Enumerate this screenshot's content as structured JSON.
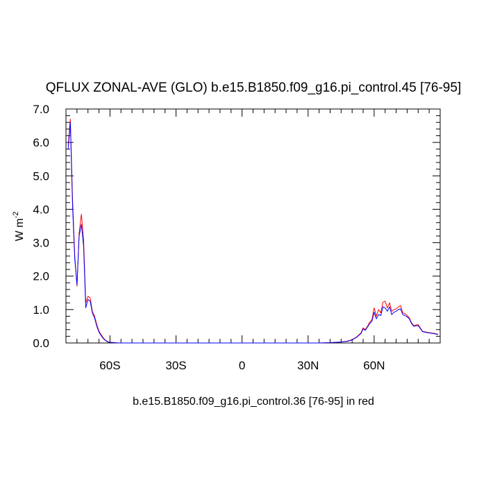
{
  "chart_data": {
    "type": "line",
    "title": "QFLUX ZONAL-AVE (GLO) b.e15.B1850.f09_g16.pi_control.45 [76-95]",
    "xlabel": "b.e15.B1850.f09_g16.pi_control.36 [76-95] in red",
    "ylabel": "W m",
    "ylabel_exponent": "-2",
    "xlim": [
      -80,
      90
    ],
    "ylim": [
      0,
      7
    ],
    "xticks": [
      {
        "value": -60,
        "label": "60S"
      },
      {
        "value": -30,
        "label": "30S"
      },
      {
        "value": 0,
        "label": "0"
      },
      {
        "value": 30,
        "label": "30N"
      },
      {
        "value": 60,
        "label": "60N"
      }
    ],
    "yticks": [
      {
        "value": 0,
        "label": "0.0"
      },
      {
        "value": 1,
        "label": "1.0"
      },
      {
        "value": 2,
        "label": "2.0"
      },
      {
        "value": 3,
        "label": "3.0"
      },
      {
        "value": 4,
        "label": "4.0"
      },
      {
        "value": 5,
        "label": "5.0"
      },
      {
        "value": 6,
        "label": "6.0"
      },
      {
        "value": 7,
        "label": "7.0"
      }
    ],
    "grid": false,
    "series": [
      {
        "color": "#ff0000",
        "x": [
          -79,
          -78,
          -77,
          -76,
          -75,
          -74,
          -73,
          -72,
          -71,
          -70,
          -69,
          -68,
          -67,
          -66,
          -65,
          -64,
          -63,
          -62,
          -61,
          -60,
          -58,
          -56,
          -54,
          -50,
          -40,
          -20,
          0,
          20,
          35,
          40,
          45,
          48,
          50,
          52,
          54,
          55,
          56,
          57,
          58,
          59,
          60,
          61,
          62,
          63,
          64,
          65,
          66,
          67,
          68,
          69,
          70,
          71,
          72,
          73,
          74,
          75,
          76,
          77,
          78,
          80,
          82,
          84,
          86,
          88,
          89
        ],
        "y": [
          5.9,
          6.7,
          4.3,
          2.6,
          1.7,
          3.3,
          3.85,
          3.1,
          1.2,
          1.4,
          1.35,
          0.95,
          0.8,
          0.55,
          0.35,
          0.25,
          0.15,
          0.08,
          0.04,
          0.02,
          0.01,
          0.0,
          0.0,
          0.0,
          0.0,
          0.0,
          0.0,
          0.0,
          0.0,
          0.01,
          0.03,
          0.06,
          0.1,
          0.18,
          0.3,
          0.45,
          0.4,
          0.5,
          0.62,
          0.7,
          1.05,
          0.8,
          1.0,
          0.9,
          1.22,
          1.25,
          1.05,
          1.2,
          0.95,
          1.0,
          1.02,
          1.08,
          1.12,
          0.9,
          0.88,
          0.82,
          0.75,
          0.6,
          0.52,
          0.55,
          0.35,
          0.32,
          0.3,
          0.28,
          0.26
        ]
      },
      {
        "color": "#0000ff",
        "x": [
          -79,
          -78,
          -77,
          -76,
          -75,
          -74,
          -73,
          -72,
          -71,
          -70,
          -69,
          -68,
          -67,
          -66,
          -65,
          -64,
          -63,
          -62,
          -61,
          -60,
          -58,
          -56,
          -54,
          -50,
          -40,
          -20,
          0,
          20,
          35,
          40,
          45,
          48,
          50,
          52,
          54,
          55,
          56,
          57,
          58,
          59,
          60,
          61,
          62,
          63,
          64,
          65,
          66,
          67,
          68,
          69,
          70,
          71,
          72,
          73,
          74,
          75,
          76,
          77,
          78,
          80,
          82,
          84,
          86,
          88,
          89
        ],
        "y": [
          5.8,
          6.6,
          4.1,
          2.5,
          1.75,
          3.2,
          3.55,
          2.9,
          1.05,
          1.3,
          1.25,
          0.9,
          0.75,
          0.5,
          0.32,
          0.22,
          0.13,
          0.07,
          0.03,
          0.02,
          0.01,
          0.0,
          0.0,
          0.0,
          0.0,
          0.0,
          0.0,
          0.0,
          0.0,
          0.01,
          0.03,
          0.05,
          0.09,
          0.17,
          0.28,
          0.42,
          0.38,
          0.48,
          0.58,
          0.65,
          0.92,
          0.72,
          0.85,
          0.82,
          1.08,
          1.05,
          0.95,
          1.08,
          0.85,
          0.92,
          0.95,
          1.0,
          1.02,
          0.85,
          0.82,
          0.78,
          0.72,
          0.58,
          0.5,
          0.52,
          0.34,
          0.31,
          0.29,
          0.27,
          0.25
        ]
      }
    ]
  }
}
